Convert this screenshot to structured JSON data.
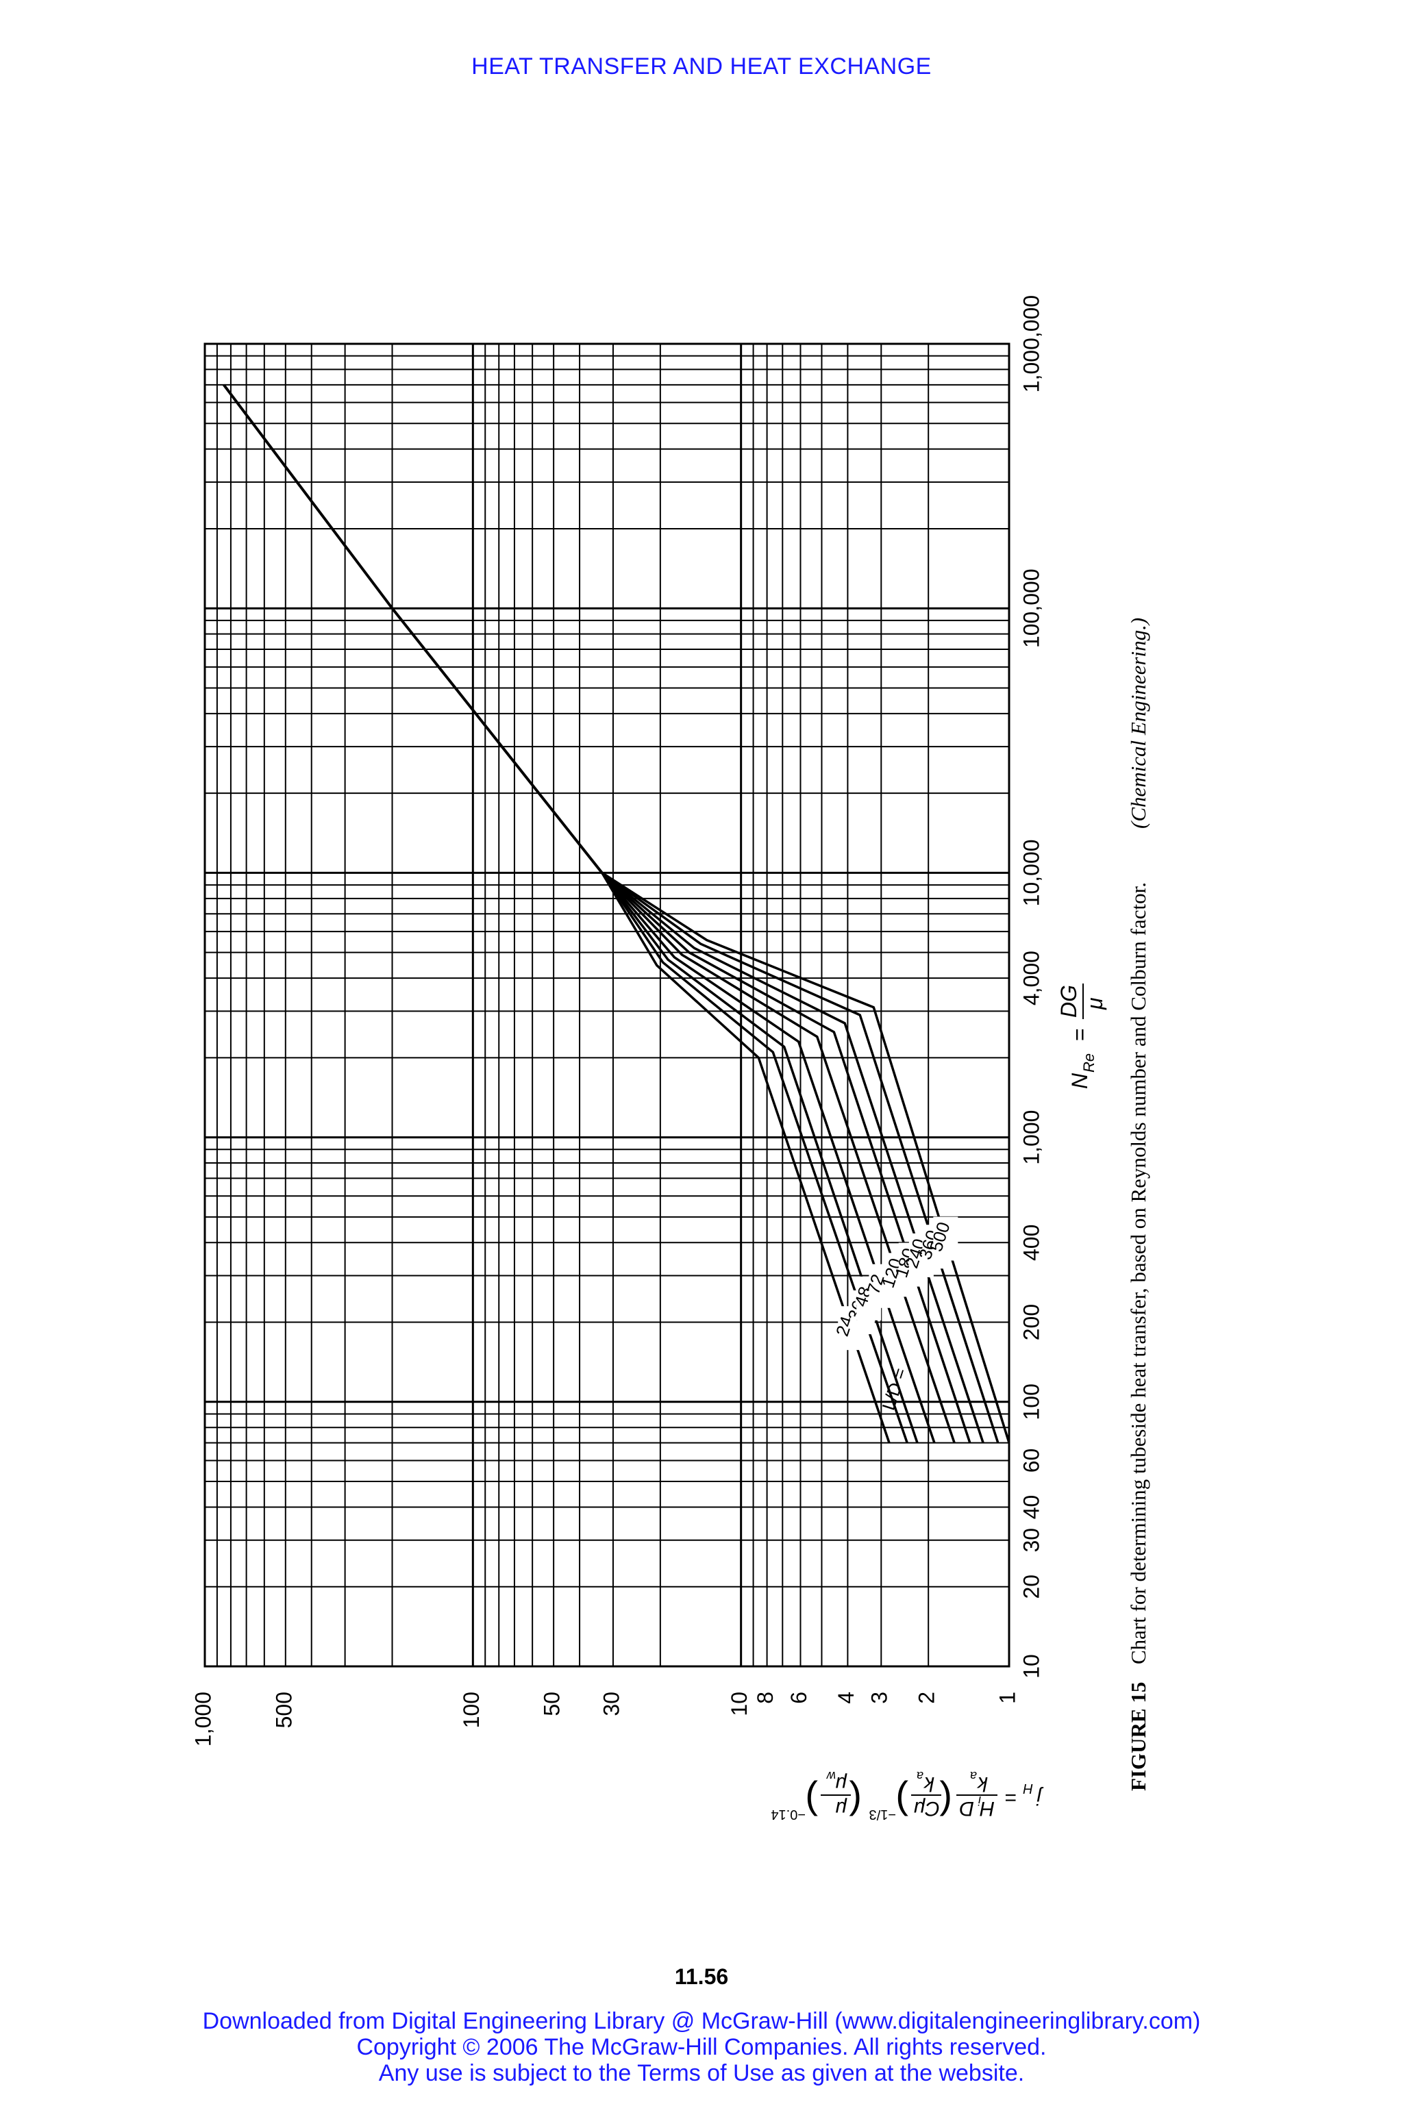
{
  "header": {
    "running_head": "HEAT TRANSFER AND HEAT EXCHANGE"
  },
  "footer": {
    "page_number": "11.56",
    "line1": "Downloaded from Digital Engineering Library @ McGraw-Hill (www.digitalengineeringlibrary.com)",
    "line2": "Copyright © 2006 The McGraw-Hill Companies. All rights reserved.",
    "line3": "Any use is subject to the Terms of Use as given at the website."
  },
  "caption": {
    "figure_label": "FIGURE 15",
    "text": "Chart for determining tubeside heat transfer, based on Reynolds number and Colburn factor.",
    "source": "(Chemical Engineering.)"
  },
  "chart_data": {
    "type": "line",
    "orientation": "rotated 90° counter-clockwise",
    "x_axis": {
      "scale": "log",
      "range": [
        10,
        1000000
      ],
      "label_lhs": "N",
      "label_sub": "Re",
      "label_eq": "=",
      "label_num": "DG",
      "label_den": "μ",
      "tick_labels": [
        "10",
        "20",
        "30",
        "40",
        "60",
        "100",
        "200",
        "400",
        "1,000",
        "4,000",
        "10,000",
        "100,000",
        "1,000,000"
      ],
      "tick_values": [
        10,
        20,
        30,
        40,
        60,
        100,
        200,
        400,
        1000,
        4000,
        10000,
        100000,
        1000000
      ]
    },
    "y_axis": {
      "scale": "log",
      "range": [
        1,
        1000
      ],
      "label_lhs": "j",
      "label_sub": "H",
      "label_eq": "=",
      "label_frac1_num": "H",
      "label_frac1_num_sub": "i",
      "label_frac1_num_tail": "D",
      "label_frac1_den": "k",
      "label_frac1_den_sub": "a",
      "label_frac2_num": "Cμ",
      "label_frac2_den": "k",
      "label_frac2_den_sub": "a",
      "label_exp2": "−1/3",
      "label_frac3_num": "μ",
      "label_frac3_den": "μ",
      "label_frac3_den_sub": "w",
      "label_exp3": "−0.14",
      "tick_labels": [
        "1,000",
        "500",
        "100",
        "50",
        "30",
        "10",
        "8",
        "6",
        "4",
        "3",
        "2",
        "1"
      ],
      "tick_values": [
        1000,
        500,
        100,
        50,
        30,
        10,
        8,
        6,
        4,
        3,
        2,
        1
      ]
    },
    "grid": true,
    "series_label_prefix": "L/D =",
    "series": [
      {
        "name": "24",
        "laminar": [
          [
            70,
            2.8
          ],
          [
            2000,
            8.6
          ]
        ]
      },
      {
        "name": "36",
        "laminar": [
          [
            70,
            2.4
          ],
          [
            2100,
            7.6
          ]
        ]
      },
      {
        "name": "48",
        "laminar": [
          [
            70,
            2.2
          ],
          [
            2200,
            6.9
          ]
        ]
      },
      {
        "name": "72",
        "laminar": [
          [
            70,
            1.9
          ],
          [
            2300,
            6.1
          ]
        ]
      },
      {
        "name": "120",
        "laminar": [
          [
            70,
            1.6
          ],
          [
            2400,
            5.2
          ]
        ]
      },
      {
        "name": "180",
        "laminar": [
          [
            70,
            1.4
          ],
          [
            2500,
            4.5
          ]
        ]
      },
      {
        "name": "240",
        "laminar": [
          [
            70,
            1.25
          ],
          [
            2700,
            4.1
          ]
        ]
      },
      {
        "name": "360",
        "laminar": [
          [
            70,
            1.1
          ],
          [
            2900,
            3.6
          ]
        ]
      },
      {
        "name": "500",
        "laminar": [
          [
            70,
            1.0
          ],
          [
            3100,
            3.2
          ]
        ]
      }
    ],
    "turbulent": [
      [
        10000,
        33
      ],
      [
        100000,
        200
      ],
      [
        700000,
        850
      ]
    ]
  }
}
